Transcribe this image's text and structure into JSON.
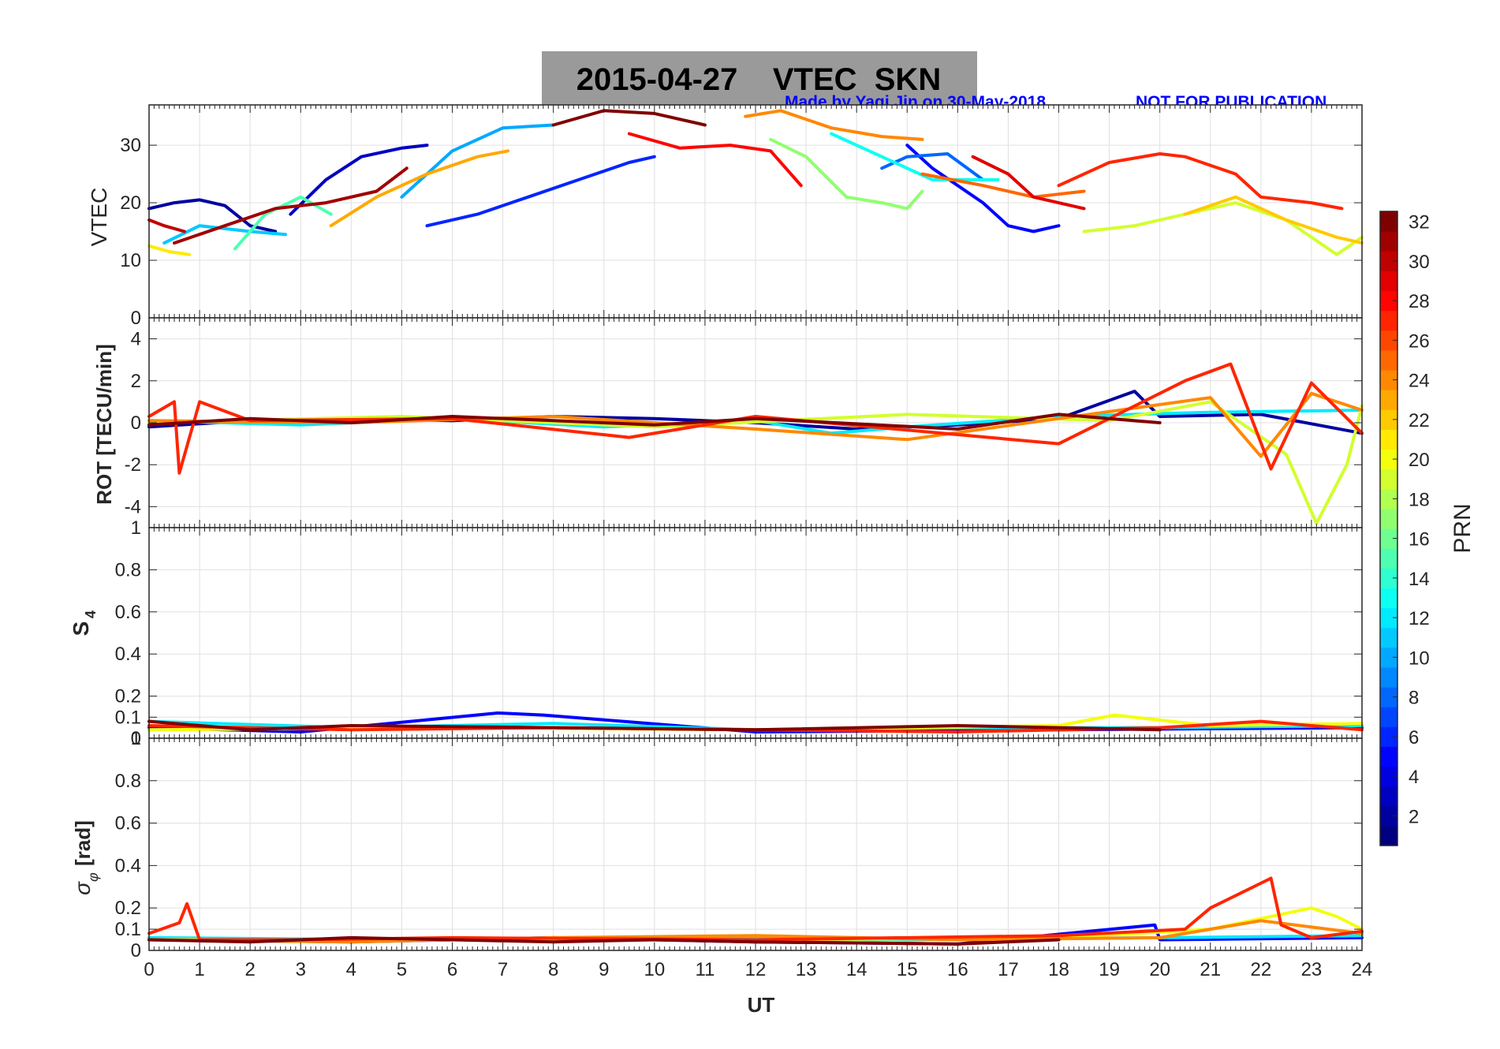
{
  "title": "2015-04-27    VTEC  SKN",
  "credit": "Made by Yaqi Jin on 30-May-2018",
  "notice": "NOT FOR PUBLICATION",
  "colors": {
    "title_bg": "#9a9a9a",
    "credit_text": "#0000ff",
    "axis": "#262626",
    "grid": "#e0e0e0"
  },
  "chart_data": [
    {
      "type": "line",
      "title": "VTEC",
      "ylabel": "VTEC",
      "xlim": [
        0,
        24
      ],
      "ylim": [
        0,
        37
      ],
      "yticks": [
        0,
        10,
        20,
        30
      ],
      "series": [
        {
          "prn": 2,
          "x": [
            0.0,
            0.5,
            1.0,
            1.5,
            2.0,
            2.5
          ],
          "y": [
            19,
            20,
            20.5,
            19.5,
            16,
            15
          ]
        },
        {
          "prn": 3,
          "x": [
            2.8,
            3.5,
            4.2,
            5.0,
            5.5
          ],
          "y": [
            18,
            24,
            28,
            29.5,
            30
          ]
        },
        {
          "prn": 5,
          "x": [
            15.0,
            15.5,
            16.5,
            17.0,
            17.5,
            18.0
          ],
          "y": [
            30,
            26,
            20,
            16,
            15,
            16
          ]
        },
        {
          "prn": 6,
          "x": [
            5.5,
            6.5,
            7.5,
            8.5,
            9.5,
            10.0
          ],
          "y": [
            16,
            18,
            21,
            24,
            27,
            28
          ]
        },
        {
          "prn": 8,
          "x": [
            14.5,
            15.0,
            15.8,
            16.5
          ],
          "y": [
            26,
            28,
            28.5,
            24
          ]
        },
        {
          "prn": 10,
          "x": [
            5.0,
            6.0,
            7.0,
            8.0
          ],
          "y": [
            21,
            29,
            33,
            33.5
          ]
        },
        {
          "prn": 11,
          "x": [
            0.3,
            1.0,
            2.0,
            2.7
          ],
          "y": [
            13,
            16,
            15,
            14.5
          ]
        },
        {
          "prn": 13,
          "x": [
            13.5,
            14.5,
            15.5,
            16.8
          ],
          "y": [
            32,
            28,
            24,
            24
          ]
        },
        {
          "prn": 15,
          "x": [
            1.7,
            2.3,
            3.0,
            3.6
          ],
          "y": [
            12,
            18,
            21,
            18
          ]
        },
        {
          "prn": 17,
          "x": [
            12.3,
            13.0,
            13.8,
            14.5,
            15.0,
            15.3
          ],
          "y": [
            31,
            28,
            21,
            20,
            19,
            22
          ]
        },
        {
          "prn": 19,
          "x": [
            18.5,
            19.5,
            20.5,
            21.5,
            22.5,
            23.5,
            24.0
          ],
          "y": [
            15,
            16,
            18,
            20,
            17,
            11,
            14
          ]
        },
        {
          "prn": 21,
          "x": [
            0.0,
            0.4,
            0.8
          ],
          "y": [
            12.5,
            11.5,
            11
          ]
        },
        {
          "prn": 22,
          "x": [
            20.5,
            21.5,
            22.5,
            23.5,
            24.0
          ],
          "y": [
            18,
            21,
            17,
            14,
            13
          ]
        },
        {
          "prn": 23,
          "x": [
            3.6,
            4.5,
            5.5,
            6.5,
            7.1
          ],
          "y": [
            16,
            21,
            25,
            28,
            29
          ]
        },
        {
          "prn": 24,
          "x": [
            11.8,
            12.5,
            13.5,
            14.5,
            15.3
          ],
          "y": [
            35,
            36,
            33,
            31.5,
            31
          ]
        },
        {
          "prn": 25,
          "x": [
            15.3,
            16.5,
            17.5,
            18.5
          ],
          "y": [
            25,
            23,
            21,
            22
          ]
        },
        {
          "prn": 27,
          "x": [
            18.0,
            19.0,
            20.0,
            20.5,
            21.5,
            22.0,
            23.0,
            23.6
          ],
          "y": [
            23,
            27,
            28.5,
            28,
            25,
            21,
            20,
            19
          ]
        },
        {
          "prn": 28,
          "x": [
            9.5,
            10.5,
            11.5,
            12.3,
            12.9
          ],
          "y": [
            32,
            29.5,
            30,
            29,
            23
          ]
        },
        {
          "prn": 29,
          "x": [
            16.3,
            17.0,
            17.5,
            18.5
          ],
          "y": [
            28,
            25,
            21,
            19
          ]
        },
        {
          "prn": 30,
          "x": [
            0.0,
            0.3,
            0.7
          ],
          "y": [
            17,
            16,
            15
          ]
        },
        {
          "prn": 31,
          "x": [
            0.5,
            1.5,
            2.5,
            3.5,
            4.5,
            5.1
          ],
          "y": [
            13,
            16,
            19,
            20,
            22,
            26
          ]
        },
        {
          "prn": 32,
          "x": [
            8.0,
            9.0,
            10.0,
            11.0
          ],
          "y": [
            33.5,
            36,
            35.5,
            33.5
          ]
        }
      ]
    },
    {
      "type": "line",
      "title": "ROT",
      "ylabel": "ROT [TECU/min]",
      "xlim": [
        0,
        24
      ],
      "ylim": [
        -5,
        5
      ],
      "yticks": [
        -4,
        -2,
        0,
        2,
        4
      ],
      "series": [
        {
          "prn": 2,
          "x": [
            0,
            2,
            4,
            6,
            8,
            10,
            12,
            14,
            16,
            18,
            19.5,
            20,
            22,
            24
          ],
          "y": [
            -0.2,
            0.1,
            0.2,
            0.1,
            0.3,
            0.2,
            0.0,
            -0.3,
            -0.1,
            0.2,
            1.5,
            0.3,
            0.4,
            -0.5
          ]
        },
        {
          "prn": 12,
          "x": [
            0,
            3,
            6,
            9,
            12,
            13.5,
            15,
            18,
            21,
            24
          ],
          "y": [
            0.1,
            -0.1,
            0.2,
            -0.2,
            0.1,
            -0.5,
            -0.2,
            0.3,
            0.5,
            0.6
          ]
        },
        {
          "prn": 19,
          "x": [
            0,
            5,
            10,
            15,
            19,
            21,
            22.5,
            23.1,
            23.7,
            24
          ],
          "y": [
            0.0,
            0.3,
            -0.2,
            0.4,
            0.1,
            1.0,
            -1.5,
            -4.8,
            -2.0,
            0.8
          ]
        },
        {
          "prn": 24,
          "x": [
            0,
            4,
            8,
            12,
            15,
            18,
            21,
            22,
            23,
            24
          ],
          "y": [
            0.1,
            0.0,
            0.3,
            -0.3,
            -0.8,
            0.2,
            1.2,
            -1.6,
            1.4,
            0.6
          ]
        },
        {
          "prn": 27,
          "x": [
            0,
            0.5,
            0.6,
            1.0,
            2,
            6,
            9.5,
            12,
            18,
            20.5,
            21.4,
            22.2,
            23,
            24
          ],
          "y": [
            0.3,
            1.0,
            -2.4,
            1.0,
            0.1,
            0.2,
            -0.7,
            0.3,
            -1.0,
            2.0,
            2.8,
            -2.2,
            1.9,
            -0.5
          ]
        },
        {
          "prn": 32,
          "x": [
            0,
            2,
            4,
            6,
            8,
            10,
            12,
            16,
            18,
            19,
            20
          ],
          "y": [
            -0.1,
            0.2,
            0.0,
            0.3,
            0.1,
            -0.1,
            0.2,
            -0.3,
            0.4,
            0.2,
            0.0
          ]
        }
      ]
    },
    {
      "type": "line",
      "title": "S4",
      "ylabel": "S4",
      "xlim": [
        0,
        24
      ],
      "ylim": [
        0,
        1
      ],
      "yticks": [
        0,
        0.1,
        0.2,
        0.4,
        0.6,
        0.8,
        1
      ],
      "series": [
        {
          "prn": 5,
          "x": [
            0,
            3,
            6.9,
            7.8,
            12,
            18,
            24
          ],
          "y": [
            0.05,
            0.03,
            0.12,
            0.11,
            0.03,
            0.04,
            0.05
          ]
        },
        {
          "prn": 12,
          "x": [
            0,
            4,
            8,
            12,
            16,
            20,
            24
          ],
          "y": [
            0.08,
            0.05,
            0.07,
            0.04,
            0.05,
            0.05,
            0.06
          ]
        },
        {
          "prn": 20,
          "x": [
            0,
            6,
            12,
            18,
            19.1,
            21,
            24
          ],
          "y": [
            0.04,
            0.05,
            0.04,
            0.06,
            0.11,
            0.06,
            0.07
          ]
        },
        {
          "prn": 27,
          "x": [
            0,
            4,
            8,
            12,
            16,
            20,
            22,
            24
          ],
          "y": [
            0.06,
            0.04,
            0.05,
            0.04,
            0.03,
            0.05,
            0.08,
            0.04
          ]
        },
        {
          "prn": 32,
          "x": [
            0,
            2,
            4,
            8,
            12,
            16,
            18,
            20
          ],
          "y": [
            0.08,
            0.04,
            0.06,
            0.05,
            0.04,
            0.06,
            0.05,
            0.04
          ]
        }
      ]
    },
    {
      "type": "line",
      "title": "sigma phi",
      "ylabel": "σφ [rad]",
      "xlim": [
        0,
        24
      ],
      "ylim": [
        0,
        1
      ],
      "yticks": [
        0,
        0.1,
        0.2,
        0.4,
        0.6,
        0.8,
        1
      ],
      "xticks": [
        0,
        1,
        2,
        3,
        4,
        5,
        6,
        7,
        8,
        9,
        10,
        11,
        12,
        13,
        14,
        15,
        16,
        17,
        18,
        19,
        20,
        21,
        22,
        23,
        24
      ],
      "xlabel": "UT",
      "series": [
        {
          "prn": 5,
          "x": [
            0,
            4,
            8,
            12,
            16,
            19.9,
            20,
            24
          ],
          "y": [
            0.05,
            0.04,
            0.06,
            0.04,
            0.03,
            0.12,
            0.05,
            0.06
          ]
        },
        {
          "prn": 12,
          "x": [
            0,
            5,
            10,
            15,
            20,
            24
          ],
          "y": [
            0.06,
            0.05,
            0.06,
            0.05,
            0.06,
            0.07
          ]
        },
        {
          "prn": 20,
          "x": [
            0,
            6,
            12,
            18,
            21,
            23,
            23.5,
            24
          ],
          "y": [
            0.05,
            0.05,
            0.05,
            0.06,
            0.1,
            0.2,
            0.16,
            0.1
          ]
        },
        {
          "prn": 24,
          "x": [
            0,
            4,
            8,
            12,
            16,
            20,
            22,
            24
          ],
          "y": [
            0.05,
            0.04,
            0.06,
            0.07,
            0.05,
            0.06,
            0.14,
            0.08
          ]
        },
        {
          "prn": 27,
          "x": [
            0,
            0.6,
            0.75,
            1.0,
            3,
            6,
            12,
            18,
            20.5,
            21,
            22.2,
            22.4,
            23,
            24
          ],
          "y": [
            0.08,
            0.13,
            0.22,
            0.05,
            0.05,
            0.06,
            0.05,
            0.07,
            0.1,
            0.2,
            0.34,
            0.12,
            0.06,
            0.09
          ]
        },
        {
          "prn": 32,
          "x": [
            0,
            2,
            4,
            6,
            8,
            10,
            12,
            16,
            18
          ],
          "y": [
            0.05,
            0.04,
            0.06,
            0.05,
            0.04,
            0.05,
            0.04,
            0.03,
            0.05
          ]
        }
      ]
    }
  ],
  "colorbar": {
    "label": "PRN",
    "min": 1,
    "max": 32,
    "tick_values": [
      2,
      4,
      6,
      8,
      10,
      12,
      14,
      16,
      18,
      20,
      22,
      24,
      26,
      28,
      30,
      32
    ],
    "tick_labels": [
      "2",
      "4",
      "6",
      "8",
      "10",
      "12",
      "14",
      "16",
      "18",
      "20",
      "22",
      "24",
      "26",
      "28",
      "30",
      "32"
    ]
  },
  "axis_labels": {
    "vtec": "VTEC",
    "rot": "ROT [TECU/min]",
    "s4_main": "S",
    "s4_sub": "4",
    "sigma_main": "σ",
    "sigma_sub": "φ",
    "sigma_unit": "[rad]",
    "x": "UT"
  }
}
